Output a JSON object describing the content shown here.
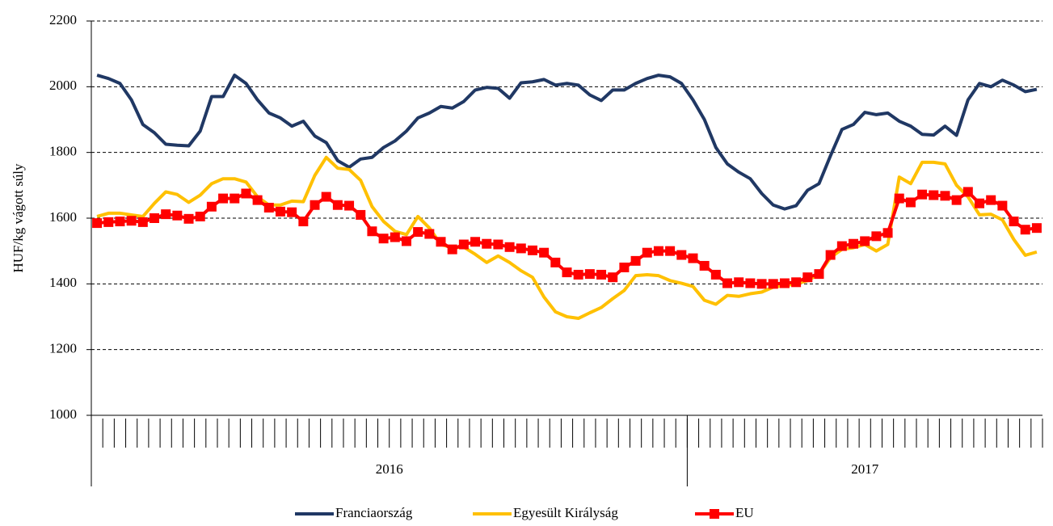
{
  "chart_data": {
    "type": "line",
    "y_label": "HUF/kg vágott súly",
    "categories": [
      null,
      null,
      null,
      null,
      null,
      null,
      null,
      null,
      null,
      null,
      null,
      null,
      null,
      null,
      null,
      null,
      null,
      null,
      null,
      null,
      null,
      null,
      null,
      null,
      null,
      null,
      null,
      null,
      null,
      null,
      null,
      null,
      null,
      null,
      null,
      null,
      null,
      null,
      null,
      null,
      null,
      null,
      null,
      null,
      null,
      null,
      null,
      null,
      null,
      null,
      null,
      null,
      null,
      null,
      null,
      null,
      null,
      null,
      null,
      null,
      null,
      null,
      null,
      null,
      null,
      null,
      null,
      null,
      null,
      null,
      null,
      null,
      null,
      null,
      null,
      null,
      null,
      null,
      null,
      null,
      null,
      null,
      null
    ],
    "groups": [
      {
        "label": "2016",
        "count": 52
      },
      {
        "label": "2017",
        "count": 31
      }
    ],
    "ylim": [
      1000,
      2200
    ],
    "yticks": [
      1000,
      1200,
      1400,
      1600,
      1800,
      2000,
      2200
    ],
    "grid": true,
    "legend": "bottom",
    "series": [
      {
        "name": "Franciaország",
        "color": "#203864",
        "marker": false,
        "values": [
          2035,
          2025,
          2010,
          1960,
          1885,
          1860,
          1825,
          1822,
          1820,
          1865,
          1970,
          1970,
          2035,
          2010,
          1960,
          1920,
          1905,
          1880,
          1895,
          1850,
          1830,
          1775,
          1755,
          1780,
          1785,
          1815,
          1835,
          1865,
          1905,
          1920,
          1940,
          1935,
          1955,
          1990,
          1998,
          1995,
          1965,
          2012,
          2015,
          2022,
          2005,
          2010,
          2005,
          1975,
          1958,
          1990,
          1990,
          2010,
          2025,
          2035,
          2030,
          2010,
          1960,
          1900,
          1815,
          1765,
          1740,
          1720,
          1675,
          1640,
          1628,
          1638,
          1685,
          1705,
          1790,
          1870,
          1885,
          1922,
          1915,
          1920,
          1895,
          1880,
          1855,
          1853,
          1880,
          1852,
          1960,
          2010,
          2000,
          2020,
          2005,
          1985,
          1992
        ]
      },
      {
        "name": "Egyesült Királyság",
        "color": "#ffc000",
        "marker": false,
        "values": [
          1605,
          1615,
          1615,
          1610,
          1605,
          1645,
          1680,
          1672,
          1648,
          1670,
          1705,
          1720,
          1720,
          1710,
          1665,
          1640,
          1640,
          1652,
          1650,
          1730,
          1785,
          1752,
          1748,
          1715,
          1635,
          1590,
          1560,
          1550,
          1605,
          1570,
          1520,
          1510,
          1512,
          1490,
          1465,
          1485,
          1465,
          1440,
          1420,
          1360,
          1315,
          1300,
          1295,
          1312,
          1328,
          1355,
          1380,
          1425,
          1428,
          1425,
          1410,
          1402,
          1392,
          1350,
          1338,
          1365,
          1362,
          1370,
          1375,
          1390,
          1395,
          1400,
          1410,
          1430,
          1480,
          1505,
          1510,
          1520,
          1500,
          1520,
          1725,
          1705,
          1770,
          1770,
          1765,
          1700,
          1665,
          1610,
          1612,
          1595,
          1535,
          1487,
          1497
        ]
      },
      {
        "name": "EU",
        "color": "#ff0000",
        "marker": true,
        "values": [
          1585,
          1588,
          1590,
          1592,
          1588,
          1600,
          1612,
          1608,
          1598,
          1605,
          1635,
          1660,
          1660,
          1675,
          1655,
          1632,
          1620,
          1618,
          1590,
          1640,
          1665,
          1640,
          1638,
          1610,
          1560,
          1538,
          1542,
          1530,
          1558,
          1552,
          1528,
          1505,
          1520,
          1528,
          1522,
          1520,
          1512,
          1508,
          1502,
          1495,
          1465,
          1435,
          1428,
          1430,
          1428,
          1420,
          1450,
          1470,
          1495,
          1500,
          1500,
          1488,
          1478,
          1455,
          1428,
          1402,
          1405,
          1402,
          1400,
          1400,
          1402,
          1405,
          1420,
          1430,
          1488,
          1515,
          1522,
          1530,
          1545,
          1555,
          1660,
          1648,
          1672,
          1670,
          1668,
          1655,
          1680,
          1645,
          1655,
          1638,
          1590,
          1565,
          1570
        ]
      }
    ]
  }
}
